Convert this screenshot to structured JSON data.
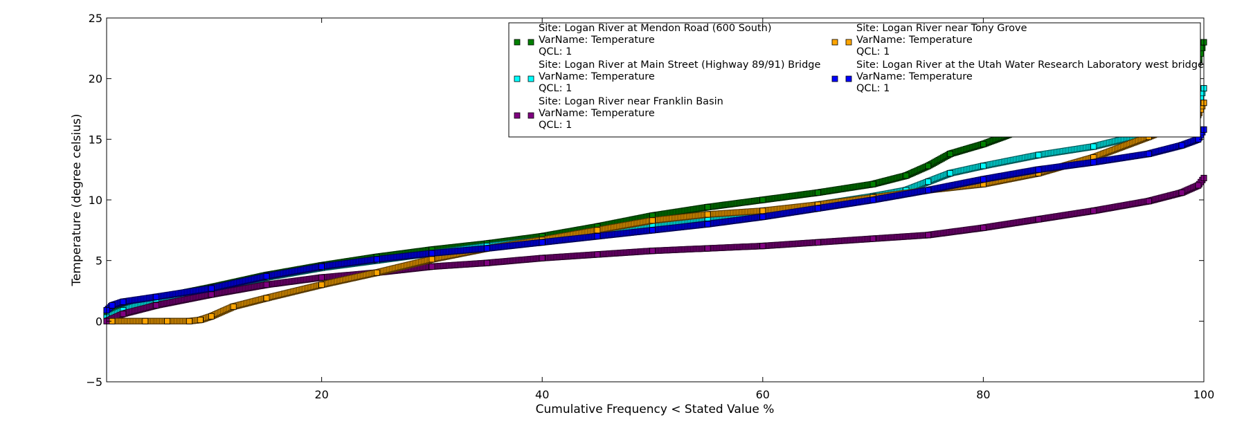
{
  "chart_data": {
    "type": "scatter",
    "title": "",
    "xlabel": "Cumulative Frequency < Stated Value %",
    "ylabel": "Temperature (degree celsius)",
    "xlim": [
      0.5,
      100
    ],
    "ylim": [
      -5,
      25
    ],
    "x_ticks": [
      20,
      40,
      60,
      80,
      100
    ],
    "y_ticks": [
      -5,
      0,
      5,
      10,
      15,
      20,
      25
    ],
    "x_tick_labels": [
      "20",
      "40",
      "60",
      "80",
      "100"
    ],
    "y_tick_labels": [
      "−5",
      "0",
      "5",
      "10",
      "15",
      "20",
      "25"
    ],
    "grid": false,
    "legend_position": "top-right",
    "series": [
      {
        "name": "Site: Logan River at Mendon Road (600 South)",
        "legend_lines": [
          "Site: Logan River at Mendon Road (600 South)",
          "VarName: Temperature",
          "QCL: 1"
        ],
        "color": "#008000",
        "x": [
          0.5,
          2,
          5,
          10,
          15,
          20,
          25,
          30,
          35,
          40,
          45,
          50,
          55,
          60,
          65,
          70,
          73,
          75,
          77,
          80,
          83,
          85,
          90,
          95,
          98,
          99.5,
          100
        ],
        "y": [
          0.5,
          1.5,
          1.9,
          2.8,
          3.8,
          4.6,
          5.3,
          5.9,
          6.4,
          7.0,
          7.8,
          8.7,
          9.4,
          10.0,
          10.6,
          11.3,
          12.0,
          12.8,
          13.8,
          14.6,
          15.6,
          16.2,
          17.4,
          18.9,
          20.3,
          21.3,
          23.0
        ]
      },
      {
        "name": "Site: Logan River at Main Street (Highway 89/91) Bridge",
        "legend_lines": [
          "Site: Logan River at Main Street (Highway 89/91) Bridge",
          "VarName: Temperature",
          "QCL: 1"
        ],
        "color": "#00ffff",
        "x": [
          0.5,
          2,
          5,
          10,
          15,
          20,
          25,
          30,
          35,
          40,
          45,
          50,
          55,
          60,
          65,
          70,
          73,
          75,
          77,
          80,
          85,
          90,
          95,
          98,
          99.5,
          100
        ],
        "y": [
          0.3,
          0.9,
          1.8,
          2.6,
          3.6,
          4.4,
          5.0,
          5.6,
          6.2,
          6.7,
          7.3,
          7.9,
          8.5,
          9.0,
          9.6,
          10.3,
          10.8,
          11.5,
          12.2,
          12.8,
          13.7,
          14.4,
          15.5,
          16.8,
          17.8,
          19.2
        ]
      },
      {
        "name": "Site: Logan River near Franklin Basin",
        "legend_lines": [
          "Site: Logan River near Franklin Basin",
          "VarName: Temperature",
          "QCL: 1"
        ],
        "color": "#800080",
        "x": [
          0.5,
          2,
          5,
          10,
          15,
          20,
          25,
          30,
          35,
          40,
          45,
          50,
          55,
          60,
          65,
          70,
          75,
          80,
          85,
          90,
          95,
          98,
          99.5,
          100
        ],
        "y": [
          0.0,
          0.6,
          1.3,
          2.2,
          3.0,
          3.6,
          4.0,
          4.5,
          4.8,
          5.2,
          5.5,
          5.8,
          6.0,
          6.2,
          6.5,
          6.8,
          7.1,
          7.7,
          8.4,
          9.1,
          9.9,
          10.6,
          11.2,
          11.8
        ]
      },
      {
        "name": "Site: Logan River near Tony Grove",
        "legend_lines": [
          "Site: Logan River near Tony Grove",
          "VarName: Temperature",
          "QCL: 1"
        ],
        "color": "#ffa500",
        "x": [
          1,
          4,
          6,
          8,
          9,
          10,
          12,
          15,
          20,
          25,
          30,
          35,
          40,
          45,
          50,
          55,
          60,
          65,
          70,
          75,
          80,
          85,
          90,
          95,
          98,
          99.5,
          100
        ],
        "y": [
          0,
          0,
          0,
          0,
          0.1,
          0.4,
          1.2,
          1.9,
          3.0,
          4.0,
          5.1,
          6.0,
          6.7,
          7.5,
          8.3,
          8.8,
          9.1,
          9.6,
          10.2,
          10.8,
          11.3,
          12.2,
          13.5,
          15.2,
          16.3,
          17.0,
          18.0
        ]
      },
      {
        "name": "Site: Logan River at the Utah Water Research Laboratory west bridge",
        "legend_lines": [
          "Site: Logan River at the Utah Water Research Laboratory west bridge",
          "VarName: Temperature",
          "QCL: 1"
        ],
        "color": "#0000ff",
        "x": [
          0.5,
          1,
          2,
          5,
          10,
          15,
          20,
          25,
          30,
          35,
          40,
          45,
          50,
          55,
          60,
          65,
          70,
          75,
          80,
          85,
          90,
          95,
          98,
          99.5,
          100
        ],
        "y": [
          0.9,
          1.3,
          1.6,
          2.0,
          2.7,
          3.7,
          4.5,
          5.1,
          5.6,
          6.0,
          6.5,
          7.0,
          7.5,
          8.0,
          8.6,
          9.3,
          10.0,
          10.8,
          11.7,
          12.5,
          13.1,
          13.8,
          14.5,
          15.0,
          15.8
        ]
      }
    ]
  }
}
